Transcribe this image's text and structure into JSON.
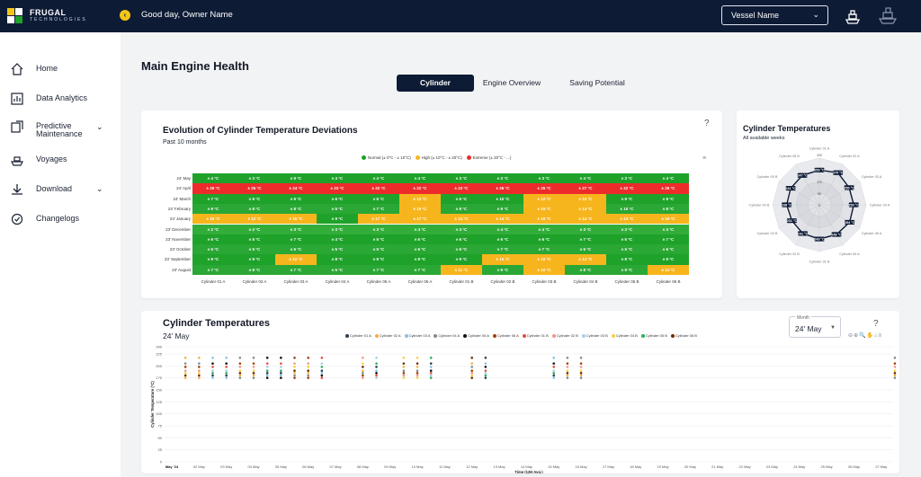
{
  "header": {
    "logo_top": "FRUGAL",
    "logo_bottom": "TECHNOLOGIES",
    "greeting": "Good day, Owner Name",
    "vessel_select": "Vessel Name"
  },
  "sidebar": {
    "items": [
      {
        "label": "Home",
        "icon": "home-icon"
      },
      {
        "label": "Data Analytics",
        "icon": "analytics-icon"
      },
      {
        "label": "Predictive Maintenance",
        "icon": "maintenance-icon",
        "expandable": true
      },
      {
        "label": "Voyages",
        "icon": "ship-icon"
      },
      {
        "label": "Download",
        "icon": "download-icon",
        "expandable": true
      },
      {
        "label": "Changelogs",
        "icon": "changelog-icon"
      }
    ]
  },
  "page": {
    "title": "Main Engine Health",
    "tabs": [
      "Cylinder",
      "Engine Overview",
      "Saving Potential"
    ],
    "active_tab": "Cylinder"
  },
  "heatmap_card": {
    "title": "Evolution of Cylinder Temperature Deviations",
    "subtitle": "Past 10 months",
    "help": "?",
    "menu": "≡"
  },
  "radar_card": {
    "title": "Cylinder Temperatures",
    "subtitle": "All available weeks"
  },
  "scatter_card": {
    "title": "Cylinder Temperatures",
    "subtitle": "24' May",
    "month_label": "Month",
    "month_value": "24' May",
    "help": "?",
    "tools": "⊖⊕🔍✋⌂≡"
  },
  "colors": {
    "navy": "#0e1b35",
    "green": "#1ea22a",
    "yellow": "#f7b51d",
    "red": "#ee2b2b"
  },
  "chart_data": [
    {
      "type": "heatmap",
      "title": "Evolution of Cylinder Temperature Deviations",
      "legend": [
        {
          "name": "Normal (± 0°C - ± 10°C)",
          "color": "#1ea22a"
        },
        {
          "name": "High (± 10°C - ± 20°C)",
          "color": "#f7b51d"
        },
        {
          "name": "Extreme (± 20°C - ...)",
          "color": "#ee2b2b"
        }
      ],
      "columns": [
        "Cylinder 01 A",
        "Cylinder 02 A",
        "Cylinder 03 A",
        "Cylinder 04 A",
        "Cylinder 05 A",
        "Cylinder 06 A",
        "Cylinder 01 B",
        "Cylinder 02 B",
        "Cylinder 03 B",
        "Cylinder 04 B",
        "Cylinder 05 B",
        "Cylinder 06 B"
      ],
      "rows": [
        {
          "label": "24' May",
          "values": [
            "± 4 °C",
            "± 3 °C",
            "± 9 °C",
            "± 4 °C",
            "± 4 °C",
            "± 4 °C",
            "± 3 °C",
            "± 3 °C",
            "± 3 °C",
            "± 4 °C",
            "± 3 °C",
            "± 4 °C"
          ],
          "levels": [
            "n",
            "n",
            "n",
            "n",
            "n",
            "n",
            "n",
            "n",
            "n",
            "n",
            "n",
            "n"
          ]
        },
        {
          "label": "24' April",
          "values": [
            "± 26 °C",
            "± 25 °C",
            "± 24 °C",
            "± 23 °C",
            "± 22 °C",
            "± 22 °C",
            "± 23 °C",
            "± 26 °C",
            "± 25 °C",
            "± 27 °C",
            "± 22 °C",
            "± 25 °C"
          ],
          "levels": [
            "e",
            "e",
            "e",
            "e",
            "e",
            "e",
            "e",
            "e",
            "e",
            "e",
            "e",
            "e"
          ]
        },
        {
          "label": "24' March",
          "values": [
            "± 7 °C",
            "± 9 °C",
            "± 9 °C",
            "± 6 °C",
            "± 6 °C",
            "± 12 °C",
            "± 5 °C",
            "± 10 °C",
            "± 12 °C",
            "± 10 °C",
            "± 9 °C",
            "± 9 °C"
          ],
          "levels": [
            "n",
            "n",
            "n",
            "n",
            "n",
            "h",
            "n",
            "n",
            "h",
            "h",
            "n",
            "n"
          ]
        },
        {
          "label": "24' February",
          "values": [
            "± 9 °C",
            "± 8 °C",
            "± 8 °C",
            "± 5 °C",
            "± 7 °C",
            "± 15 °C",
            "± 8 °C",
            "± 9 °C",
            "± 15 °C",
            "± 14 °C",
            "± 10 °C",
            "± 8 °C"
          ],
          "levels": [
            "n",
            "n",
            "n",
            "n",
            "n",
            "h",
            "n",
            "n",
            "h",
            "h",
            "n",
            "n"
          ]
        },
        {
          "label": "24' January",
          "values": [
            "± 16 °C",
            "± 12 °C",
            "± 15 °C",
            "± 9 °C",
            "± 17 °C",
            "± 17 °C",
            "± 14 °C",
            "± 14 °C",
            "± 15 °C",
            "± 14 °C",
            "± 13 °C",
            "± 16 °C"
          ],
          "levels": [
            "h",
            "h",
            "h",
            "n",
            "h",
            "h",
            "h",
            "h",
            "h",
            "h",
            "h",
            "h"
          ]
        },
        {
          "label": "23' December",
          "values": [
            "± 2 °C",
            "± 2 °C",
            "± 3 °C",
            "± 3 °C",
            "± 3 °C",
            "± 4 °C",
            "± 3 °C",
            "± 4 °C",
            "± 4 °C",
            "± 3 °C",
            "± 3 °C",
            "± 3 °C"
          ],
          "levels": [
            "n",
            "n",
            "n",
            "n",
            "n",
            "n",
            "n",
            "n",
            "n",
            "n",
            "n",
            "n"
          ]
        },
        {
          "label": "23' November",
          "values": [
            "± 6 °C",
            "± 5 °C",
            "± 7 °C",
            "± 4 °C",
            "± 5 °C",
            "± 5 °C",
            "± 6 °C",
            "± 6 °C",
            "± 6 °C",
            "± 7 °C",
            "± 5 °C",
            "± 7 °C"
          ],
          "levels": [
            "n",
            "n",
            "n",
            "n",
            "n",
            "n",
            "n",
            "n",
            "n",
            "n",
            "n",
            "n"
          ]
        },
        {
          "label": "23' October",
          "values": [
            "± 5 °C",
            "± 5 °C",
            "± 6 °C",
            "± 5 °C",
            "± 5 °C",
            "± 6 °C",
            "± 6 °C",
            "± 7 °C",
            "± 7 °C",
            "± 6 °C",
            "± 5 °C",
            "± 6 °C"
          ],
          "levels": [
            "n",
            "n",
            "n",
            "n",
            "n",
            "n",
            "n",
            "n",
            "n",
            "n",
            "n",
            "n"
          ]
        },
        {
          "label": "23' September",
          "values": [
            "± 9 °C",
            "± 9 °C",
            "± 12 °C",
            "± 8 °C",
            "± 9 °C",
            "± 8 °C",
            "± 9 °C",
            "± 10 °C",
            "± 10 °C",
            "± 12 °C",
            "± 8 °C",
            "± 9 °C"
          ],
          "levels": [
            "n",
            "n",
            "h",
            "n",
            "n",
            "n",
            "n",
            "h",
            "h",
            "h",
            "n",
            "n"
          ]
        },
        {
          "label": "23' August",
          "values": [
            "± 7 °C",
            "± 8 °C",
            "± 7 °C",
            "± 5 °C",
            "± 7 °C",
            "± 7 °C",
            "± 11 °C",
            "± 9 °C",
            "± 10 °C",
            "± 8 °C",
            "± 9 °C",
            "± 12 °C"
          ],
          "levels": [
            "n",
            "n",
            "n",
            "n",
            "n",
            "n",
            "h",
            "n",
            "h",
            "n",
            "n",
            "h"
          ]
        }
      ]
    },
    {
      "type": "radar",
      "title": "Cylinder Temperatures",
      "axes": [
        "Cylinder 01 A",
        "Cylinder 02 A",
        "Cylinder 03 A",
        "Cylinder 04 A",
        "Cylinder 05 A",
        "Cylinder 06 A",
        "Cylinder 01 B",
        "Cylinder 02 B",
        "Cylinder 03 B",
        "Cylinder 04 B",
        "Cylinder 05 B",
        "Cylinder 06 B"
      ],
      "values": [
        253,
        270,
        250,
        250,
        254,
        249,
        249,
        241,
        231,
        238,
        241,
        247
      ],
      "rings": [
        340,
        255,
        170,
        85,
        0
      ]
    },
    {
      "type": "scatter",
      "title": "Cylinder Temperatures",
      "xlabel": "Time (12H Avg.)",
      "ylabel": "Cylinder Temperature (°C)",
      "ylim": [
        0,
        240
      ],
      "yticks": [
        0,
        25,
        50,
        75,
        100,
        125,
        150,
        175,
        200,
        225,
        240
      ],
      "x_ticks": [
        "May '24",
        "02 May",
        "03 May",
        "04 May",
        "05 May",
        "06 May",
        "07 May",
        "08 May",
        "09 May",
        "10 May",
        "11 May",
        "12 May",
        "13 May",
        "14 May",
        "15 May",
        "16 May",
        "17 May",
        "18 May",
        "19 May",
        "20 May",
        "21 May",
        "22 May",
        "23 May",
        "24 May",
        "25 May",
        "26 May",
        "27 May"
      ],
      "series": [
        {
          "name": "Cylinder 01 A",
          "color": "#2c3e50"
        },
        {
          "name": "Cylinder 02 A",
          "color": "#f5b041"
        },
        {
          "name": "Cylinder 03 A",
          "color": "#85c1e9"
        },
        {
          "name": "Cylinder 04 A",
          "color": "#7f8c8d"
        },
        {
          "name": "Cylinder 05 A",
          "color": "#111111"
        },
        {
          "name": "Cylinder 06 A",
          "color": "#a04000"
        },
        {
          "name": "Cylinder 01 B",
          "color": "#e74c3c"
        },
        {
          "name": "Cylinder 02 B",
          "color": "#f1948a"
        },
        {
          "name": "Cylinder 03 B",
          "color": "#a9cce3"
        },
        {
          "name": "Cylinder 04 B",
          "color": "#f4d03f"
        },
        {
          "name": "Cylinder 05 B",
          "color": "#27ae60"
        },
        {
          "name": "Cylinder 06 B",
          "color": "#6e2c00"
        }
      ],
      "points_x_index": [
        0.5,
        1,
        1.5,
        2,
        2.5,
        3,
        3.5,
        4,
        4.5,
        5,
        5.5,
        7,
        7.5,
        8.5,
        9,
        9.5,
        11,
        11.5,
        14,
        14.5,
        15,
        26.5,
        27
      ],
      "typical_values": [
        215,
        205,
        198,
        190,
        185,
        180,
        175
      ]
    }
  ]
}
